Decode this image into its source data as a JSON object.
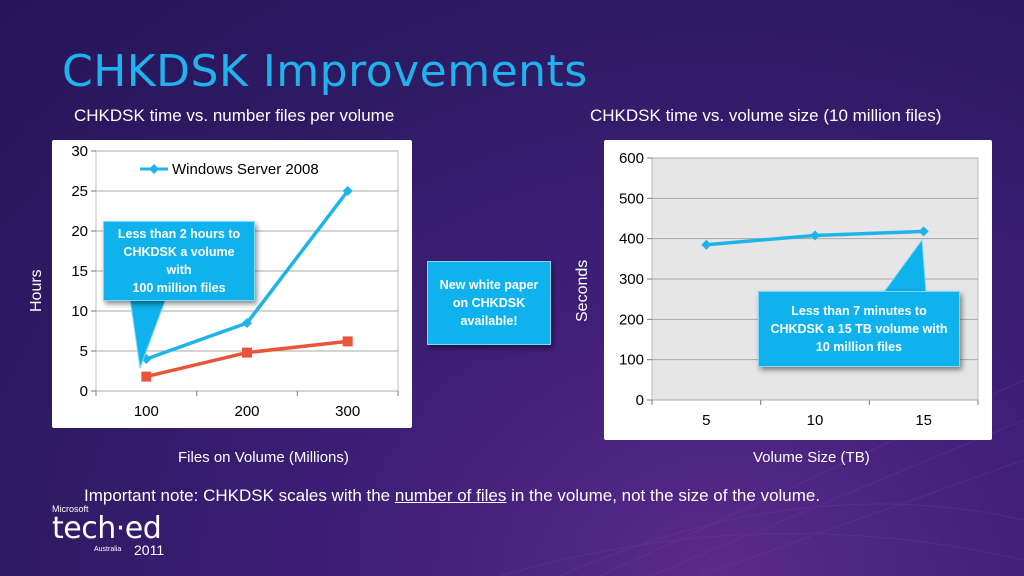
{
  "slide": {
    "title": "CHKDSK Improvements",
    "accent_color": "#1fb3ee",
    "background_color": "#3f1f78"
  },
  "left_chart": {
    "subtitle": "CHKDSK time vs. number files per volume",
    "ylabel": "Hours",
    "xlabel": "Files on Volume (Millions)",
    "callout": [
      "Less than 2 hours to",
      "CHKDSK a volume",
      "with",
      "100 million files"
    ]
  },
  "right_chart": {
    "subtitle": "CHKDSK time vs. volume size (10 million files)",
    "ylabel": "Seconds",
    "xlabel": "Volume Size (TB)",
    "callout": [
      "Less than 7 minutes to",
      "CHKDSK a 15 TB volume with",
      "10 million files"
    ]
  },
  "white_paper_callout": [
    "New white paper",
    "on CHKDSK",
    "available!"
  ],
  "note": {
    "before": "Important note: CHKDSK scales with the ",
    "underlined": "number of files",
    "after": " in the volume, not the size of the volume."
  },
  "logo": {
    "brand": "Microsoft",
    "name": "tech·ed",
    "region": "Australia",
    "year": "2011"
  },
  "chart_data": [
    {
      "type": "line",
      "x": [
        100,
        200,
        300
      ],
      "xticks": [
        "100",
        "200",
        "300"
      ],
      "series": [
        {
          "name": "Windows Server 2008",
          "color": "#1eb4ea",
          "marker": "diamond",
          "values": [
            4,
            8.5,
            25
          ]
        },
        {
          "color": "#e8553a",
          "marker": "square",
          "values": [
            1.8,
            4.8,
            6.2
          ]
        }
      ],
      "ylim": [
        0,
        30
      ],
      "yticks": [
        0,
        5,
        10,
        15,
        20,
        25,
        30
      ],
      "ylabel": "Hours",
      "xlabel": "Files on Volume (Millions)",
      "legend": "top",
      "grid": true
    },
    {
      "type": "line",
      "x": [
        5,
        10,
        15
      ],
      "xticks": [
        "5",
        "10",
        "15"
      ],
      "series": [
        {
          "color": "#1eb4ea",
          "marker": "diamond",
          "values": [
            385,
            408,
            418
          ]
        }
      ],
      "ylim": [
        0,
        600
      ],
      "yticks": [
        0,
        100,
        200,
        300,
        400,
        500,
        600
      ],
      "ylabel": "Seconds",
      "xlabel": "Volume Size (TB)",
      "grid": true
    }
  ]
}
